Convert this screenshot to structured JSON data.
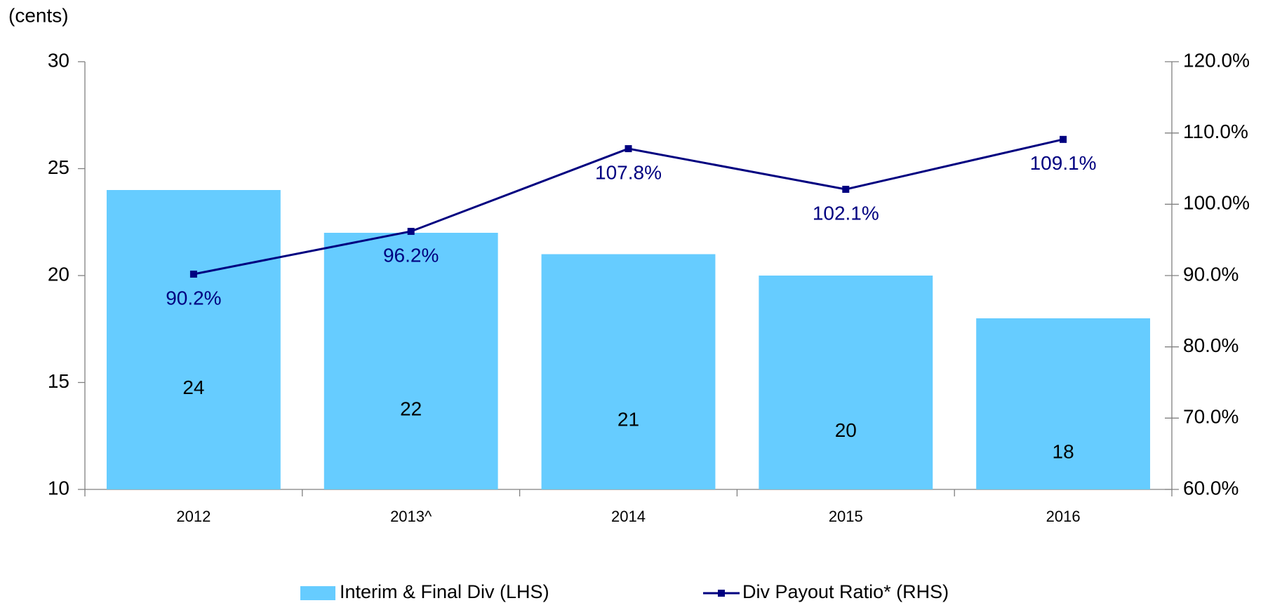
{
  "chart_data": {
    "type": "bar",
    "y_axis_label": "(cents)",
    "categories": [
      "2012",
      "2013^",
      "2014",
      "2015",
      "2016"
    ],
    "series": [
      {
        "name": "Interim & Final Div (LHS)",
        "type": "bar",
        "color": "#66ccff",
        "values": [
          24,
          22,
          21,
          20,
          18
        ]
      },
      {
        "name": "Div Payout Ratio* (RHS)",
        "type": "line",
        "axis": "y2",
        "color": "#000080",
        "values": [
          90.2,
          96.2,
          107.8,
          102.1,
          109.1
        ],
        "value_labels": [
          "90.2%",
          "96.2%",
          "107.8%",
          "102.1%",
          "109.1%"
        ]
      }
    ],
    "ylim": [
      10,
      30
    ],
    "yticks": [
      10,
      15,
      20,
      25,
      30
    ],
    "y2lim": [
      60,
      120
    ],
    "y2ticks": [
      {
        "value": 60,
        "label": "60.0%"
      },
      {
        "value": 70,
        "label": "70.0%"
      },
      {
        "value": 80,
        "label": "80.0%"
      },
      {
        "value": 90,
        "label": "90.0%"
      },
      {
        "value": 100,
        "label": "100.0%"
      },
      {
        "value": 110,
        "label": "110.0%"
      },
      {
        "value": 120,
        "label": "120.0%"
      }
    ],
    "legend": "bottom",
    "grid": false
  }
}
